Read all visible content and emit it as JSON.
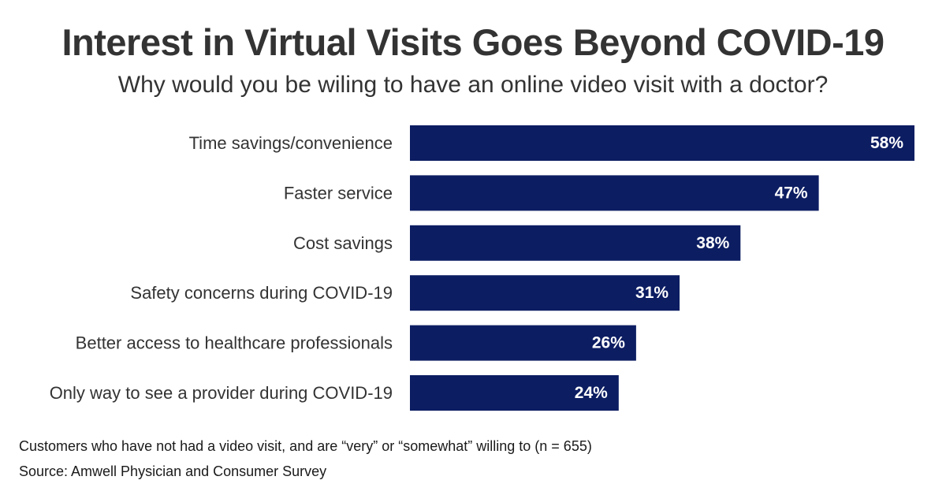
{
  "title": "Interest in Virtual Visits Goes Beyond COVID-19",
  "subtitle": "Why would you be wiling to have an online video visit with a doctor?",
  "footnote": "Customers who have not had a video visit, and are “very” or “somewhat” willing to (n = 655)",
  "source": "Source: Amwell Physician and Consumer Survey",
  "colors": {
    "bar": "#0c1d62",
    "bar_label": "#ffffff",
    "category_label": "#333333"
  },
  "chart_data": {
    "type": "bar",
    "orientation": "horizontal",
    "categories": [
      "Time savings/convenience",
      "Faster service",
      "Cost savings",
      "Safety concerns during COVID-19",
      "Better access to healthcare professionals",
      "Only way to see a provider during COVID-19"
    ],
    "values": [
      58,
      47,
      38,
      31,
      26,
      24
    ],
    "value_labels": [
      "58%",
      "47%",
      "38%",
      "31%",
      "26%",
      "24%"
    ],
    "xlim": [
      0,
      58
    ],
    "grid": false,
    "legend": "none"
  }
}
